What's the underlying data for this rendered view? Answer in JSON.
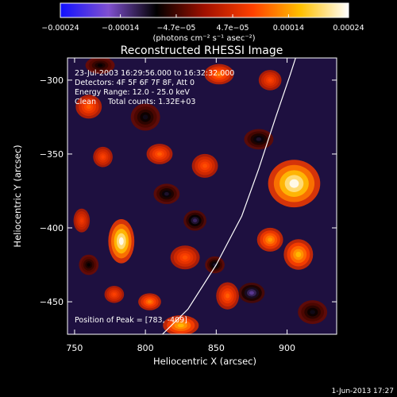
{
  "chart_data": {
    "type": "heatmap",
    "title": "Reconstructed RHESSI Image",
    "xlabel": "Heliocentric X (arcsec)",
    "ylabel": "Heliocentric Y (arcsec)",
    "xlim": [
      745,
      935
    ],
    "ylim": [
      -472,
      -285
    ],
    "x_ticks": [
      750,
      800,
      850,
      900
    ],
    "x_tick_labels": [
      "750",
      "800",
      "850",
      "900"
    ],
    "y_ticks": [
      -300,
      -350,
      -400,
      -450
    ],
    "y_tick_labels": [
      "−300",
      "−350",
      "−400",
      "−450"
    ],
    "colorbar": {
      "range": [
        -0.00024,
        0.00024
      ],
      "ticks": [
        -0.00024,
        -0.00014,
        -4.7e-05,
        4.7e-05,
        0.00014,
        0.00024
      ],
      "tick_labels": [
        "−0.00024",
        "−0.00014",
        "−4.7e−05",
        "4.7e−05",
        "0.00014",
        "0.00024"
      ],
      "unit_label": "(photons cm⁻² s⁻¹ asec⁻²)",
      "colors": [
        "#1010ff",
        "#8050d0",
        "#000000",
        "#a01000",
        "#ff4000",
        "#ffc000",
        "#ffffff"
      ]
    },
    "annotations": {
      "time_range": "23-Jul-2003 16:29:56.000 to 16:32:32.000",
      "detectors": "Detectors: 4F 5F 6F 7F 8F, Att 0",
      "energy_range": "Energy Range: 12.0 - 25.0 keV",
      "clean_counts": "Clean     Total counts: 1.32E+03",
      "peak_position": "Position of Peak = [783, -409]"
    },
    "sources": [
      {
        "x": 905,
        "y": -370,
        "value": 0.00024,
        "rx": 16,
        "ry": 14
      },
      {
        "x": 783,
        "y": -409,
        "value": 0.00024,
        "rx": 8,
        "ry": 13
      },
      {
        "x": 888,
        "y": -408,
        "value": 0.00014,
        "rx": 8,
        "ry": 7
      },
      {
        "x": 908,
        "y": -418,
        "value": 0.00016,
        "rx": 9,
        "ry": 9
      },
      {
        "x": 825,
        "y": -466,
        "value": 0.00016,
        "rx": 11,
        "ry": 6
      },
      {
        "x": 803,
        "y": -450,
        "value": 0.00012,
        "rx": 7,
        "ry": 5
      },
      {
        "x": 810,
        "y": -350,
        "value": 0.0001,
        "rx": 8,
        "ry": 6
      },
      {
        "x": 852,
        "y": -296,
        "value": 0.00012,
        "rx": 9,
        "ry": 6
      },
      {
        "x": 760,
        "y": -318,
        "value": 0.0001,
        "rx": 8,
        "ry": 7
      },
      {
        "x": 888,
        "y": -300,
        "value": 8e-05,
        "rx": 7,
        "ry": 6
      },
      {
        "x": 842,
        "y": -358,
        "value": 9e-05,
        "rx": 8,
        "ry": 7
      },
      {
        "x": 770,
        "y": -352,
        "value": 8e-05,
        "rx": 6,
        "ry": 6
      },
      {
        "x": 828,
        "y": -420,
        "value": 9e-05,
        "rx": 9,
        "ry": 7
      },
      {
        "x": 858,
        "y": -446,
        "value": 0.0001,
        "rx": 7,
        "ry": 8
      },
      {
        "x": 778,
        "y": -445,
        "value": 8e-05,
        "rx": 6,
        "ry": 5
      },
      {
        "x": 755,
        "y": -395,
        "value": 7e-05,
        "rx": 5,
        "ry": 7
      },
      {
        "x": 800,
        "y": -325,
        "value": -9e-05,
        "rx": 9,
        "ry": 8
      },
      {
        "x": 815,
        "y": -377,
        "value": -0.0001,
        "rx": 8,
        "ry": 6
      },
      {
        "x": 835,
        "y": -395,
        "value": -0.00012,
        "rx": 7,
        "ry": 6
      },
      {
        "x": 875,
        "y": -444,
        "value": -0.00014,
        "rx": 8,
        "ry": 6
      },
      {
        "x": 880,
        "y": -340,
        "value": -0.0001,
        "rx": 9,
        "ry": 6
      },
      {
        "x": 768,
        "y": -290,
        "value": -8e-05,
        "rx": 9,
        "ry": 5
      },
      {
        "x": 760,
        "y": -425,
        "value": -8e-05,
        "rx": 6,
        "ry": 6
      },
      {
        "x": 918,
        "y": -457,
        "value": -9e-05,
        "rx": 9,
        "ry": 7
      },
      {
        "x": 849,
        "y": -425,
        "value": -0.0001,
        "rx": 6,
        "ry": 5
      }
    ],
    "limb_line": [
      [
        812,
        -472
      ],
      [
        830,
        -455
      ],
      [
        850,
        -425
      ],
      [
        868,
        -392
      ],
      [
        880,
        -360
      ],
      [
        892,
        -325
      ],
      [
        902,
        -297
      ],
      [
        906,
        -285
      ]
    ],
    "grid": false,
    "legend": "none"
  },
  "footer": {
    "date": "1-Jun-2013 17:27"
  }
}
